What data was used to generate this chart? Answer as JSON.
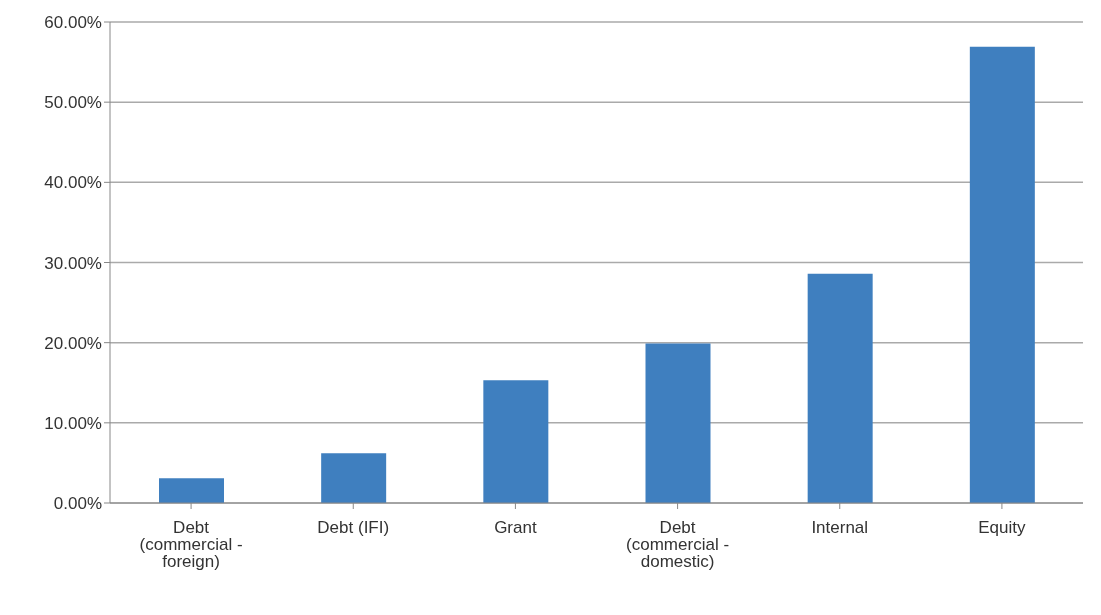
{
  "chart_data": {
    "type": "bar",
    "categories": [
      "Debt (commercial - foreign)",
      "Debt (IFI)",
      "Grant",
      "Debt (commercial - domestic)",
      "Internal",
      "Equity"
    ],
    "values": [
      3.1,
      6.2,
      15.3,
      19.9,
      28.6,
      56.9
    ],
    "color": "#3f7fbf",
    "ylim": [
      0,
      60
    ],
    "yticks": [
      {
        "value": 0,
        "label": "0.00%"
      },
      {
        "value": 10,
        "label": "10.00%"
      },
      {
        "value": 20,
        "label": "20.00%"
      },
      {
        "value": 30,
        "label": "30.00%"
      },
      {
        "value": 40,
        "label": "40.00%"
      },
      {
        "value": 50,
        "label": "50.00%"
      },
      {
        "value": 60,
        "label": "60.00%"
      }
    ],
    "grid": "y"
  }
}
